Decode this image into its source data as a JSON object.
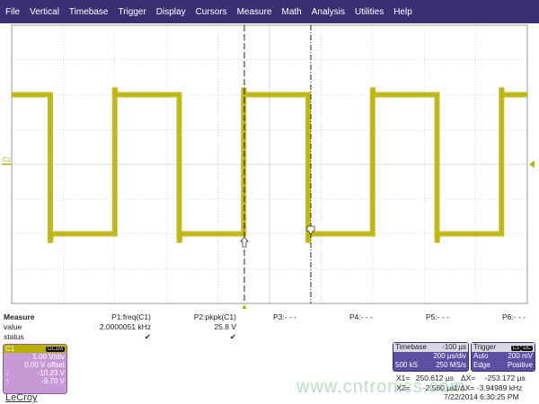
{
  "menu": [
    "File",
    "Vertical",
    "Timebase",
    "Trigger",
    "Display",
    "Cursors",
    "Measure",
    "Math",
    "Analysis",
    "Utilities",
    "Help"
  ],
  "channel_marker": "C1",
  "colors": {
    "menubar": "#3b2f72",
    "trace": "#b8b000",
    "grid": "#bbbbbb",
    "c1_panel": "#c79ad6",
    "timebase_panel": "#5a4fa3"
  },
  "measure": {
    "title": "Measure",
    "row_labels": [
      "value",
      "status"
    ],
    "params": [
      {
        "name": "P1:freq(C1)",
        "value": "2.0000051 kHz",
        "status": "✔"
      },
      {
        "name": "P2:pkpk(C1)",
        "value": "25.8 V",
        "status": "✔"
      },
      {
        "name": "P3:- - -",
        "value": "",
        "status": ""
      },
      {
        "name": "P4:- - -",
        "value": "",
        "status": ""
      },
      {
        "name": "P5:- - -",
        "value": "",
        "status": ""
      },
      {
        "name": "P6:- - -",
        "value": "",
        "status": ""
      }
    ]
  },
  "c1": {
    "label": "C1",
    "coupling": "DC1M",
    "vdiv": "5.00 V/div",
    "offset": "0.00 V offset",
    "cursor1_icon": "↓",
    "cursor1": "-10.23 V",
    "cursor2_icon": "↑",
    "cursor2": "-9.70 V"
  },
  "timebase": {
    "label": "Timebase",
    "delay": "-100 µs",
    "tdiv": "200 µs/div",
    "samples": "500 kS",
    "rate": "250 MS/s"
  },
  "trigger": {
    "label": "Trigger",
    "source": "C1",
    "coupling": "DC",
    "mode": "Auto",
    "level": "200 mV",
    "type": "Edge",
    "slope": "Positive"
  },
  "cursors": {
    "x1_label": "X1=",
    "x1": "250.612 µs",
    "dx_label": "ΔX=",
    "dx": "-253.172 µs",
    "x2_label": "X2=",
    "x2": "-2.560 µs",
    "inv_label": "1/ΔX=",
    "inv": "-3.94989 kHz"
  },
  "timestamp": "7/22/2014 6:30:25 PM",
  "logo": "LeCroy",
  "watermark": "www.cntronics.com",
  "waveform": {
    "high_V": 10,
    "low_V": -10,
    "frequency_kHz": 2,
    "volts_per_div": 5,
    "time_per_div_us": 200,
    "divisions_x": 10,
    "divisions_y": 8
  }
}
